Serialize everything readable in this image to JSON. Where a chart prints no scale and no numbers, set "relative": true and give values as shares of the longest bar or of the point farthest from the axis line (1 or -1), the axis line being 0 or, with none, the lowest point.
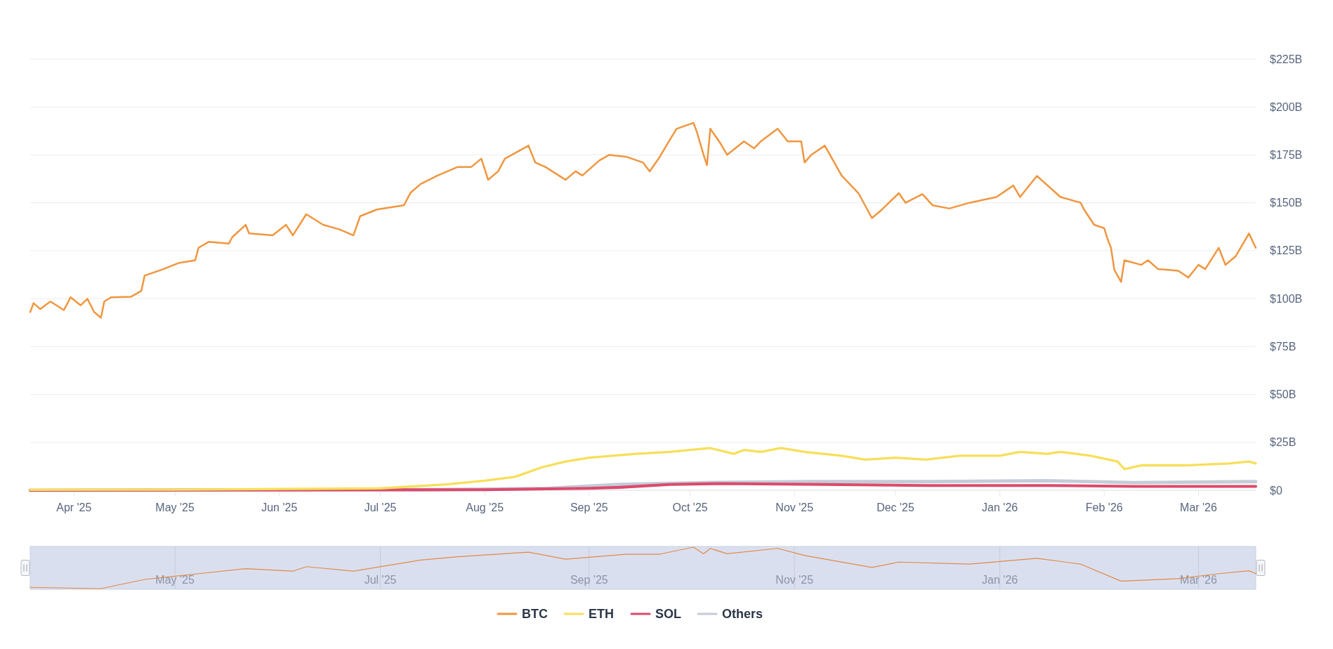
{
  "chart_data": [
    {
      "type": "line",
      "xlim": [
        "2025-03-19",
        "2026-03-18"
      ],
      "ylim": [
        0,
        225
      ],
      "xticks": [
        {
          "value": "2025-04-01",
          "label": "Apr '25"
        },
        {
          "value": "2025-05-01",
          "label": "May '25"
        },
        {
          "value": "2025-06-01",
          "label": "Jun '25"
        },
        {
          "value": "2025-07-01",
          "label": "Jul '25"
        },
        {
          "value": "2025-08-01",
          "label": "Aug '25"
        },
        {
          "value": "2025-09-01",
          "label": "Sep '25"
        },
        {
          "value": "2025-10-01",
          "label": "Oct '25"
        },
        {
          "value": "2025-11-01",
          "label": "Nov '25"
        },
        {
          "value": "2025-12-01",
          "label": "Dec '25"
        },
        {
          "value": "2026-01-01",
          "label": "Jan '26"
        },
        {
          "value": "2026-02-01",
          "label": "Feb '26"
        },
        {
          "value": "2026-03-01",
          "label": "Mar '26"
        }
      ],
      "yticks": [
        {
          "value": 0,
          "label": "$0"
        },
        {
          "value": 25,
          "label": "$25B"
        },
        {
          "value": 50,
          "label": "$50B"
        },
        {
          "value": 75,
          "label": "$75B"
        },
        {
          "value": 100,
          "label": "$100B"
        },
        {
          "value": 125,
          "label": "$125B"
        },
        {
          "value": 150,
          "label": "$150B"
        },
        {
          "value": 175,
          "label": "$175B"
        },
        {
          "value": 200,
          "label": "$200B"
        },
        {
          "value": 225,
          "label": "$225B"
        }
      ],
      "grid": "y",
      "legend": "bottom",
      "series": [
        {
          "name": "BTC",
          "color": "#f0963f",
          "x": [
            "2025-03-19",
            "2025-03-20",
            "2025-03-22",
            "2025-03-25",
            "2025-03-29",
            "2025-03-31",
            "2025-04-03",
            "2025-04-05",
            "2025-04-07",
            "2025-04-09",
            "2025-04-10",
            "2025-04-12",
            "2025-04-18",
            "2025-04-21",
            "2025-04-22",
            "2025-04-27",
            "2025-05-02",
            "2025-05-07",
            "2025-05-08",
            "2025-05-11",
            "2025-05-17",
            "2025-05-18",
            "2025-05-22",
            "2025-05-23",
            "2025-05-30",
            "2025-06-03",
            "2025-06-05",
            "2025-06-09",
            "2025-06-14",
            "2025-06-19",
            "2025-06-23",
            "2025-06-25",
            "2025-06-30",
            "2025-07-08",
            "2025-07-10",
            "2025-07-13",
            "2025-07-18",
            "2025-07-24",
            "2025-07-28",
            "2025-07-31",
            "2025-08-02",
            "2025-08-05",
            "2025-08-07",
            "2025-08-14",
            "2025-08-16",
            "2025-08-19",
            "2025-08-23",
            "2025-08-25",
            "2025-08-28",
            "2025-08-30",
            "2025-09-04",
            "2025-09-07",
            "2025-09-12",
            "2025-09-17",
            "2025-09-19",
            "2025-09-22",
            "2025-09-25",
            "2025-09-27",
            "2025-10-02",
            "2025-10-03",
            "2025-10-05",
            "2025-10-06",
            "2025-10-07",
            "2025-10-10",
            "2025-10-12",
            "2025-10-17",
            "2025-10-20",
            "2025-10-22",
            "2025-10-27",
            "2025-10-30",
            "2025-11-03",
            "2025-11-04",
            "2025-11-06",
            "2025-11-10",
            "2025-11-15",
            "2025-11-20",
            "2025-11-24",
            "2025-11-27",
            "2025-12-02",
            "2025-12-04",
            "2025-12-09",
            "2025-12-12",
            "2025-12-17",
            "2025-12-23",
            "2025-12-31",
            "2026-01-05",
            "2026-01-07",
            "2026-01-12",
            "2026-01-19",
            "2026-01-25",
            "2026-01-26",
            "2026-01-29",
            "2026-02-01",
            "2026-02-02",
            "2026-02-03",
            "2026-02-04",
            "2026-02-06",
            "2026-02-07",
            "2026-02-12",
            "2026-02-14",
            "2026-02-17",
            "2026-02-23",
            "2026-02-26",
            "2026-03-01",
            "2026-03-03",
            "2026-03-07",
            "2026-03-09",
            "2026-03-12",
            "2026-03-16",
            "2026-03-18"
          ],
          "values": [
            93,
            97.6,
            94.5,
            98.5,
            94,
            100.7,
            96.5,
            99.9,
            93,
            90,
            98.5,
            100.7,
            101,
            104,
            112,
            115,
            118.5,
            120,
            126.5,
            129.6,
            128.7,
            132,
            138.5,
            134,
            133,
            138.5,
            133,
            144,
            138.5,
            136,
            133,
            143,
            146.5,
            148.7,
            155.3,
            159.8,
            164.2,
            168.7,
            168.7,
            173,
            162,
            166.4,
            173,
            179.8,
            171,
            168.7,
            164.2,
            162,
            166.4,
            164.2,
            172,
            175,
            174,
            171,
            166.4,
            174,
            182.9,
            188.6,
            191.7,
            187,
            175,
            169.6,
            188.6,
            181,
            175,
            182,
            178.4,
            182,
            188.6,
            182,
            182,
            171,
            175,
            179.8,
            164.2,
            155,
            142,
            146.5,
            155,
            150,
            154.5,
            148.7,
            147,
            150,
            153,
            159,
            153,
            164,
            153,
            150,
            146.5,
            138.5,
            136.7,
            131,
            126.5,
            115,
            108.7,
            120,
            117.6,
            120,
            115.4,
            114.5,
            111,
            117.6,
            115.4,
            126.5,
            117.6,
            122,
            134,
            126.5
          ]
        },
        {
          "name": "ETH",
          "color": "#f7df5a",
          "x": [
            "2025-03-19",
            "2025-05-01",
            "2025-07-01",
            "2025-07-20",
            "2025-08-01",
            "2025-08-10",
            "2025-08-18",
            "2025-08-25",
            "2025-09-01",
            "2025-09-15",
            "2025-09-25",
            "2025-10-07",
            "2025-10-14",
            "2025-10-17",
            "2025-10-22",
            "2025-10-28",
            "2025-11-04",
            "2025-11-15",
            "2025-11-22",
            "2025-12-01",
            "2025-12-10",
            "2025-12-20",
            "2026-01-01",
            "2026-01-07",
            "2026-01-15",
            "2026-01-19",
            "2026-01-28",
            "2026-02-05",
            "2026-02-07",
            "2026-02-12",
            "2026-02-25",
            "2026-03-10",
            "2026-03-16",
            "2026-03-18"
          ],
          "values": [
            0.2,
            0.3,
            1,
            3,
            5,
            7,
            12,
            15,
            17,
            19,
            20,
            22,
            19,
            21,
            20,
            22,
            20,
            18,
            16,
            17,
            16,
            18,
            18,
            20,
            19,
            20,
            18,
            15,
            11,
            13,
            13,
            14,
            15,
            14
          ]
        },
        {
          "name": "SOL",
          "color": "#dc4a6c",
          "x": [
            "2025-03-19",
            "2025-08-01",
            "2025-09-01",
            "2025-09-10",
            "2025-09-25",
            "2025-10-10",
            "2025-11-10",
            "2025-12-10",
            "2026-01-15",
            "2026-02-10",
            "2026-03-18"
          ],
          "values": [
            0,
            0.3,
            1,
            1.5,
            3,
            3.5,
            3,
            2.5,
            2.5,
            2,
            2
          ]
        },
        {
          "name": "Others",
          "color": "#c4ccd8",
          "x": [
            "2025-03-19",
            "2025-07-15",
            "2025-08-20",
            "2025-09-10",
            "2025-10-05",
            "2025-11-05",
            "2025-12-10",
            "2026-01-15",
            "2026-02-10",
            "2026-03-18"
          ],
          "values": [
            0,
            0.3,
            1,
            3,
            4,
            4.5,
            4.5,
            5,
            4,
            4.5
          ]
        }
      ]
    },
    {
      "type": "line",
      "relative": true,
      "tick_labels": "x",
      "grid": "x",
      "xlim": [
        "2025-03-19",
        "2026-03-18"
      ],
      "xticks": [
        {
          "value": "2025-05-01",
          "label": "May '25"
        },
        {
          "value": "2025-07-01",
          "label": "Jul '25"
        },
        {
          "value": "2025-09-01",
          "label": "Sep '25"
        },
        {
          "value": "2025-11-01",
          "label": "Nov '25"
        },
        {
          "value": "2026-01-01",
          "label": "Jan '26"
        },
        {
          "value": "2026-03-01",
          "label": "Mar '26"
        }
      ],
      "series": [
        {
          "color": "#e08a45",
          "x": [
            "2025-03-19",
            "2025-04-09",
            "2025-04-22",
            "2025-05-08",
            "2025-05-22",
            "2025-06-05",
            "2025-06-09",
            "2025-06-23",
            "2025-07-13",
            "2025-07-24",
            "2025-08-14",
            "2025-08-25",
            "2025-09-12",
            "2025-09-22",
            "2025-10-02",
            "2025-10-05",
            "2025-10-07",
            "2025-10-12",
            "2025-10-27",
            "2025-11-04",
            "2025-11-24",
            "2025-12-02",
            "2025-12-23",
            "2026-01-12",
            "2026-01-25",
            "2026-02-06",
            "2026-02-23",
            "2026-03-07",
            "2026-03-16",
            "2026-03-18"
          ],
          "values": [
            0.03,
            0,
            0.22,
            0.36,
            0.48,
            0.42,
            0.53,
            0.42,
            0.69,
            0.77,
            0.88,
            0.71,
            0.83,
            0.83,
            1,
            0.84,
            0.97,
            0.84,
            0.97,
            0.8,
            0.51,
            0.64,
            0.59,
            0.73,
            0.59,
            0.18,
            0.24,
            0.36,
            0.43,
            0.36
          ]
        }
      ]
    }
  ]
}
